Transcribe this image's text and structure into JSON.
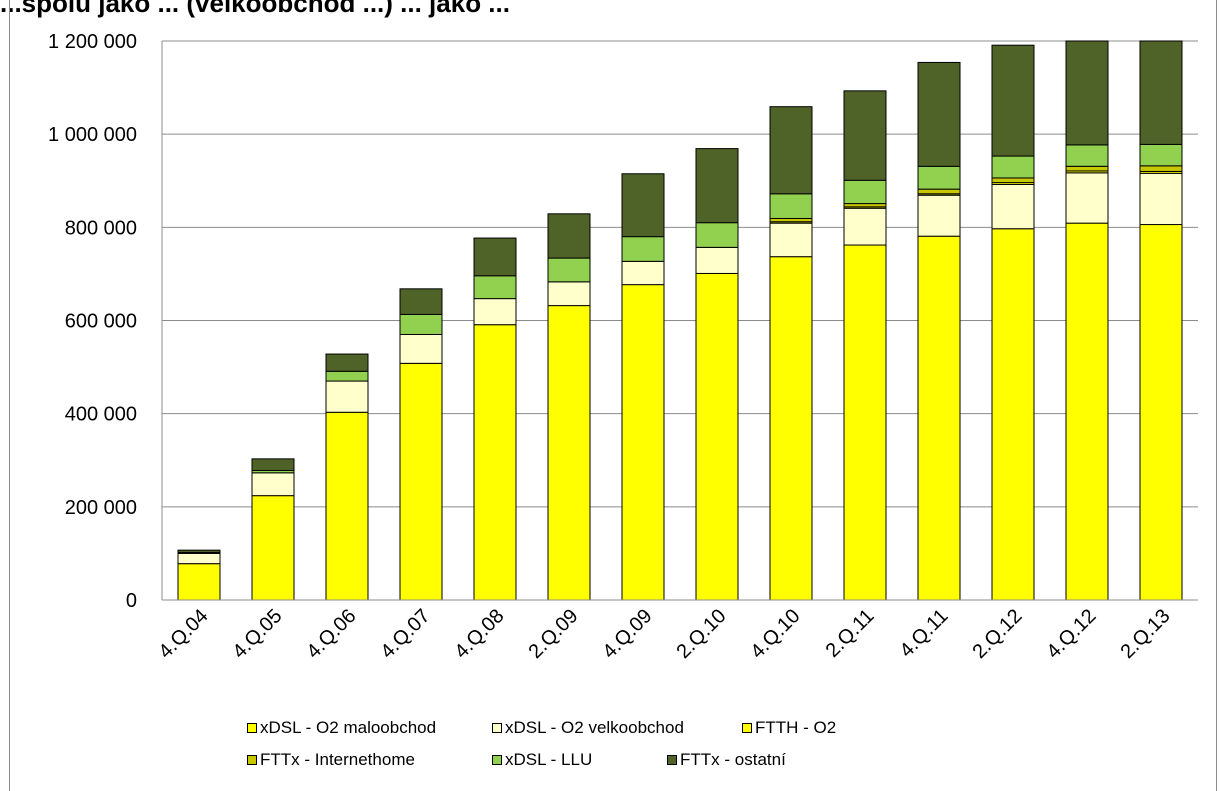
{
  "title": "...spolu jako ... (velkoobchod ...) ... jako ...",
  "chart_data": {
    "type": "bar",
    "stacked": true,
    "title": "",
    "xlabel": "",
    "ylabel": "",
    "ylim": [
      0,
      1200000
    ],
    "yticks": [
      "0",
      "200 000",
      "400 000",
      "600 000",
      "800 000",
      "1 000 000",
      "1 200 000"
    ],
    "ytick_values": [
      0,
      200000,
      400000,
      600000,
      800000,
      1000000,
      1200000
    ],
    "grid": true,
    "legend_position": "bottom",
    "categories": [
      "4.Q.04",
      "4.Q.05",
      "4.Q.06",
      "4.Q.07",
      "4.Q.08",
      "2.Q.09",
      "4.Q.09",
      "2.Q.10",
      "4.Q.10",
      "2.Q.11",
      "4.Q.11",
      "2.Q.12",
      "4.Q.12",
      "2.Q.13"
    ],
    "series": [
      {
        "name": "xDSL - O2 maloobchod",
        "color": "#ffff00",
        "values": [
          78000,
          224000,
          403000,
          508000,
          591000,
          632000,
          677000,
          701000,
          737000,
          762000,
          781000,
          797000,
          809000,
          806000
        ]
      },
      {
        "name": "xDSL - O2 velkoobchod",
        "color": "#ffffcc",
        "values": [
          22000,
          49000,
          67000,
          62000,
          56000,
          51000,
          50000,
          56000,
          72000,
          79000,
          88000,
          95000,
          108000,
          110000
        ]
      },
      {
        "name": "FTTH - O2",
        "color": "#ffff00",
        "values": [
          0,
          0,
          0,
          0,
          0,
          0,
          0,
          0,
          3000,
          3000,
          3000,
          4000,
          4000,
          4000
        ]
      },
      {
        "name": "FTTx - Internethome",
        "color": "#c8c800",
        "values": [
          0,
          0,
          0,
          0,
          0,
          0,
          0,
          0,
          7000,
          7000,
          10000,
          10000,
          10000,
          12000
        ]
      },
      {
        "name": "xDSL - LLU",
        "color": "#92d050",
        "values": [
          2000,
          5000,
          21000,
          43000,
          49000,
          51000,
          53000,
          53000,
          53000,
          50000,
          49000,
          47000,
          46000,
          46000
        ]
      },
      {
        "name": "FTTx - ostatní",
        "color": "#4f6228",
        "values": [
          5000,
          25000,
          37000,
          55000,
          81000,
          95000,
          135000,
          159000,
          187000,
          192000,
          223000,
          238000,
          260000,
          280000
        ]
      }
    ]
  }
}
